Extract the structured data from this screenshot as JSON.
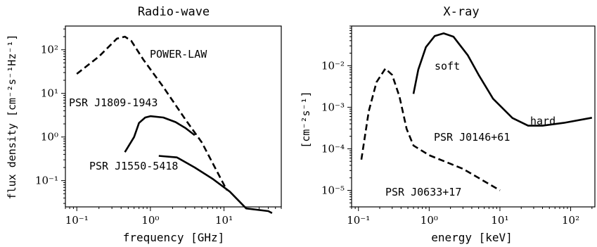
{
  "chart_data": [
    {
      "type": "line",
      "title": "Radio-wave",
      "xlabel": "frequency [GHz]",
      "ylabel": "flux density [cm⁻²s⁻¹Hz⁻¹]",
      "xscale": "log",
      "yscale": "log",
      "xlim": [
        0.07,
        60
      ],
      "ylim": [
        0.025,
        350
      ],
      "x_ticks": [
        0.1,
        1,
        10
      ],
      "x_tick_labels": [
        "10⁻¹",
        "10⁰",
        "10¹"
      ],
      "y_ticks": [
        0.1,
        1,
        10,
        100
      ],
      "y_tick_labels": [
        "10⁻¹",
        "10⁰",
        "10¹",
        "10²"
      ],
      "grid": false,
      "series": [
        {
          "name": "POWER-LAW",
          "style": "dashed",
          "points": [
            [
              0.1,
              28
            ],
            [
              0.2,
              70
            ],
            [
              0.35,
              180
            ],
            [
              0.45,
              200
            ],
            [
              0.55,
              160
            ],
            [
              0.8,
              60
            ],
            [
              1.5,
              14
            ],
            [
              3,
              2.5
            ],
            [
              5,
              0.75
            ],
            [
              10,
              0.08
            ],
            [
              11,
              0.06
            ]
          ]
        },
        {
          "name": "PSR J1809-1943",
          "style": "solid",
          "points": [
            [
              0.45,
              0.45
            ],
            [
              0.6,
              1.0
            ],
            [
              0.7,
              2.1
            ],
            [
              0.85,
              2.8
            ],
            [
              1.0,
              3.0
            ],
            [
              1.5,
              2.8
            ],
            [
              2.2,
              2.2
            ],
            [
              3.0,
              1.6
            ],
            [
              4.0,
              1.1
            ]
          ]
        },
        {
          "name": "PSR J1550-5418",
          "style": "solid",
          "points": [
            [
              1.3,
              0.37
            ],
            [
              2.3,
              0.34
            ],
            [
              4,
              0.2
            ],
            [
              7,
              0.11
            ],
            [
              12,
              0.056
            ],
            [
              20,
              0.023
            ],
            [
              40,
              0.02
            ],
            [
              45,
              0.018
            ]
          ]
        }
      ],
      "annotations": [
        "POWER-LAW",
        "PSR J1809-1943",
        "PSR J1550-5418"
      ]
    },
    {
      "type": "line",
      "title": "X-ray",
      "xlabel": "energy [keV]",
      "ylabel": "[cm⁻²s⁻¹]",
      "xscale": "log",
      "yscale": "log",
      "xlim": [
        0.08,
        220
      ],
      "ylim": [
        4e-06,
        0.09
      ],
      "x_ticks": [
        0.1,
        1,
        10,
        100
      ],
      "x_tick_labels": [
        "10⁻¹",
        "10⁰",
        "10¹",
        "10²"
      ],
      "y_ticks": [
        1e-05,
        0.0001,
        0.001,
        0.01
      ],
      "y_tick_labels": [
        "10⁻⁵",
        "10⁻⁴",
        "10⁻³",
        "10⁻²"
      ],
      "grid": false,
      "series": [
        {
          "name": "PSR J0633+17",
          "style": "dashed",
          "points": [
            [
              0.11,
              5.5e-05
            ],
            [
              0.14,
              0.0008
            ],
            [
              0.18,
              0.004
            ],
            [
              0.24,
              0.0085
            ],
            [
              0.3,
              0.006
            ],
            [
              0.38,
              0.0018
            ],
            [
              0.48,
              0.0003
            ],
            [
              0.6,
              0.00012
            ],
            [
              1.0,
              7e-05
            ],
            [
              3.0,
              3.3e-05
            ],
            [
              10,
              1e-05
            ]
          ]
        },
        {
          "name": "PSR J0146+61",
          "style": "solid",
          "points": [
            [
              0.6,
              0.0021
            ],
            [
              0.7,
              0.008
            ],
            [
              0.9,
              0.028
            ],
            [
              1.2,
              0.052
            ],
            [
              1.6,
              0.06
            ],
            [
              2.2,
              0.05
            ],
            [
              3.5,
              0.018
            ],
            [
              5,
              0.006
            ],
            [
              8,
              0.0016
            ],
            [
              15,
              0.00055
            ],
            [
              25,
              0.00036
            ],
            [
              40,
              0.00036
            ],
            [
              80,
              0.00042
            ],
            [
              200,
              0.00056
            ]
          ]
        }
      ],
      "annotations": [
        "soft",
        "hard",
        "PSR J0146+61",
        "PSR J0633+17"
      ]
    }
  ]
}
